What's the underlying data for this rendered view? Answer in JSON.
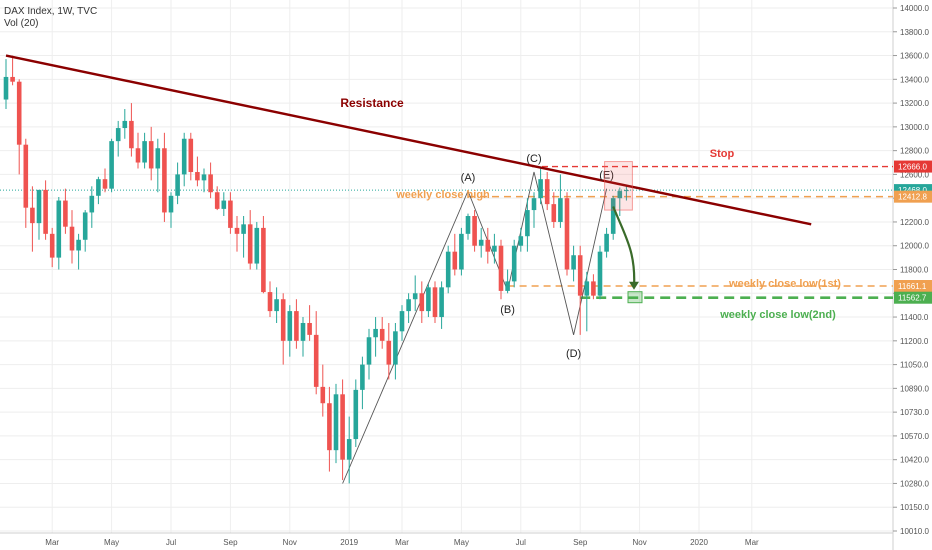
{
  "header": {
    "title": "DAX Index, 1W, TVC",
    "volume_label": "Vol (20)"
  },
  "colors": {
    "up": "#26a69a",
    "down": "#ef5350",
    "resistance": "#8b0000",
    "stop": "#e53935",
    "orange": "#f0a050",
    "green": "#4caf50",
    "teal_dotted": "#26a69a",
    "grid": "#eeeeee",
    "axis_text": "#555555"
  },
  "chart_data": {
    "type": "candlestick",
    "title": "DAX Index, 1W, TVC",
    "ylim": [
      10010,
      14000
    ],
    "y_ticks": [
      14000,
      13800,
      13600,
      13400,
      13200,
      13000,
      12800,
      12600,
      12400,
      12200,
      12000,
      11800,
      11600,
      11400,
      11200,
      11050,
      10890,
      10730,
      10570,
      10420,
      10280,
      10150,
      10010
    ],
    "y_tick_labels": [
      "14000.0",
      "13800.0",
      "13600.0",
      "13400.0",
      "13200.0",
      "13000.0",
      "12800.0",
      "12600.0",
      "12400.0",
      "12200.0",
      "12000.0",
      "11800.0",
      "11600.0",
      "11400.0",
      "11200.0",
      "11050.0",
      "10890.0",
      "10730.0",
      "10570.0",
      "10420.0",
      "10280.0",
      "10150.0",
      "10010.0"
    ],
    "x_ticks": [
      {
        "label": "Mar",
        "week": 7
      },
      {
        "label": "May",
        "week": 16
      },
      {
        "label": "Jul",
        "week": 25
      },
      {
        "label": "Sep",
        "week": 34
      },
      {
        "label": "Nov",
        "week": 43
      },
      {
        "label": "2019",
        "week": 52
      },
      {
        "label": "Mar",
        "week": 60
      },
      {
        "label": "May",
        "week": 69
      },
      {
        "label": "Jul",
        "week": 78
      },
      {
        "label": "Sep",
        "week": 87
      },
      {
        "label": "Nov",
        "week": 96
      },
      {
        "label": "2020",
        "week": 105
      },
      {
        "label": "Mar",
        "week": 113
      }
    ],
    "candles": [
      [
        13230,
        13570,
        13150,
        13420
      ],
      [
        13420,
        13600,
        13350,
        13380
      ],
      [
        13380,
        13400,
        12600,
        12850
      ],
      [
        12850,
        12900,
        12150,
        12320
      ],
      [
        12320,
        12500,
        11950,
        12190
      ],
      [
        12190,
        12450,
        12050,
        12470
      ],
      [
        12470,
        12550,
        12050,
        12100
      ],
      [
        12100,
        12150,
        11820,
        11900
      ],
      [
        11900,
        12410,
        11800,
        12380
      ],
      [
        12380,
        12480,
        12100,
        12160
      ],
      [
        12160,
        12300,
        11850,
        11960
      ],
      [
        11960,
        12100,
        11800,
        12050
      ],
      [
        12050,
        12300,
        11950,
        12280
      ],
      [
        12280,
        12500,
        12150,
        12420
      ],
      [
        12420,
        12580,
        12350,
        12560
      ],
      [
        12560,
        12650,
        12450,
        12480
      ],
      [
        12480,
        12900,
        12450,
        12880
      ],
      [
        12880,
        13050,
        12750,
        12990
      ],
      [
        12990,
        13150,
        12900,
        13050
      ],
      [
        13050,
        13200,
        12750,
        12820
      ],
      [
        12820,
        12950,
        12650,
        12700
      ],
      [
        12700,
        12950,
        12650,
        12880
      ],
      [
        12880,
        13000,
        12550,
        12650
      ],
      [
        12650,
        12900,
        12450,
        12820
      ],
      [
        12820,
        12950,
        12200,
        12280
      ],
      [
        12280,
        12450,
        12150,
        12420
      ],
      [
        12420,
        12700,
        12350,
        12600
      ],
      [
        12600,
        12950,
        12500,
        12900
      ],
      [
        12900,
        12950,
        12550,
        12620
      ],
      [
        12620,
        12750,
        12500,
        12550
      ],
      [
        12550,
        12650,
        12450,
        12600
      ],
      [
        12600,
        12700,
        12400,
        12450
      ],
      [
        12450,
        12500,
        12300,
        12310
      ],
      [
        12310,
        12450,
        12250,
        12380
      ],
      [
        12380,
        12450,
        12100,
        12150
      ],
      [
        12150,
        12250,
        11950,
        12100
      ],
      [
        12100,
        12250,
        11900,
        12180
      ],
      [
        12180,
        12300,
        11800,
        11850
      ],
      [
        11850,
        12200,
        11800,
        12150
      ],
      [
        12150,
        12250,
        11600,
        11610
      ],
      [
        11610,
        11700,
        11400,
        11450
      ],
      [
        11450,
        11650,
        11350,
        11550
      ],
      [
        11550,
        11600,
        11050,
        11200
      ],
      [
        11200,
        11500,
        11100,
        11450
      ],
      [
        11450,
        11550,
        11150,
        11200
      ],
      [
        11200,
        11400,
        11100,
        11350
      ],
      [
        11350,
        11500,
        11200,
        11250
      ],
      [
        11250,
        11450,
        10850,
        10900
      ],
      [
        10900,
        11050,
        10700,
        10790
      ],
      [
        10790,
        10900,
        10350,
        10480
      ],
      [
        10480,
        10920,
        10400,
        10850
      ],
      [
        10850,
        10950,
        10300,
        10420
      ],
      [
        10420,
        10700,
        10280,
        10550
      ],
      [
        10550,
        10950,
        10500,
        10880
      ],
      [
        10880,
        11100,
        10750,
        11050
      ],
      [
        11050,
        11300,
        10950,
        11230
      ],
      [
        11230,
        11400,
        11100,
        11300
      ],
      [
        11300,
        11400,
        11150,
        11200
      ],
      [
        11200,
        11350,
        10950,
        11050
      ],
      [
        11050,
        11350,
        10950,
        11280
      ],
      [
        11280,
        11500,
        11200,
        11450
      ],
      [
        11450,
        11600,
        11350,
        11550
      ],
      [
        11550,
        11750,
        11450,
        11600
      ],
      [
        11600,
        11700,
        11350,
        11450
      ],
      [
        11450,
        11680,
        11400,
        11650
      ],
      [
        11650,
        11700,
        11350,
        11400
      ],
      [
        11400,
        11700,
        11300,
        11650
      ],
      [
        11650,
        12000,
        11600,
        11950
      ],
      [
        11950,
        12100,
        11750,
        11800
      ],
      [
        11800,
        12150,
        11750,
        12100
      ],
      [
        12100,
        12270,
        12050,
        12250
      ],
      [
        12250,
        12300,
        11950,
        12000
      ],
      [
        12000,
        12150,
        11900,
        12050
      ],
      [
        12050,
        12150,
        11850,
        11950
      ],
      [
        11950,
        12100,
        11850,
        12000
      ],
      [
        12000,
        12050,
        11550,
        11620
      ],
      [
        11620,
        11800,
        11600,
        11700
      ],
      [
        11700,
        12050,
        11650,
        12000
      ],
      [
        12000,
        12150,
        11950,
        12080
      ],
      [
        12080,
        12400,
        11950,
        12300
      ],
      [
        12300,
        12450,
        12150,
        12400
      ],
      [
        12400,
        12660,
        12350,
        12560
      ],
      [
        12560,
        12620,
        12300,
        12350
      ],
      [
        12350,
        12450,
        12150,
        12200
      ],
      [
        12200,
        12600,
        12150,
        12400
      ],
      [
        12400,
        12450,
        11750,
        11800
      ],
      [
        11800,
        12000,
        11700,
        11920
      ],
      [
        11920,
        12000,
        11250,
        11580
      ],
      [
        11580,
        11780,
        11280,
        11700
      ],
      [
        11700,
        11760,
        11550,
        11580
      ],
      [
        11580,
        12000,
        11550,
        11950
      ],
      [
        11950,
        12150,
        11900,
        12100
      ],
      [
        12100,
        12420,
        12050,
        12400
      ],
      [
        12400,
        12490,
        12250,
        12460
      ],
      [
        12460,
        12500,
        12380,
        12468
      ]
    ],
    "resistance_line": {
      "label": "Resistance",
      "start": {
        "week": 0,
        "value": 13600
      },
      "end": {
        "week": 122,
        "value": 12180
      }
    },
    "horizontal_levels": [
      {
        "label": "Stop",
        "value": 12666,
        "tag": "12666.0",
        "color": "stop"
      },
      {
        "label": "weekly close high",
        "value": 12412.8,
        "tag": "12412.8",
        "color": "orange"
      },
      {
        "label": "weekly close low(1st)",
        "value": 11661.1,
        "tag": "11661.1",
        "color": "orange"
      },
      {
        "label": "weekly close low(2nd)",
        "value": 11562.7,
        "tag": "11562.7",
        "color": "green"
      }
    ],
    "current_price": {
      "value": 12468,
      "tag": "12468.0"
    },
    "wave_points": [
      {
        "label": "",
        "week": 51,
        "value": 10280
      },
      {
        "label": "(A)",
        "week": 70,
        "value": 12460
      },
      {
        "label": "(B)",
        "week": 76,
        "value": 11620
      },
      {
        "label": "(C)",
        "week": 80,
        "value": 12620
      },
      {
        "label": "(D)",
        "week": 86,
        "value": 11250
      },
      {
        "label": "(E)",
        "week": 91,
        "value": 12480
      }
    ],
    "projection_target": {
      "week": 95,
      "value": 11562.7
    }
  }
}
